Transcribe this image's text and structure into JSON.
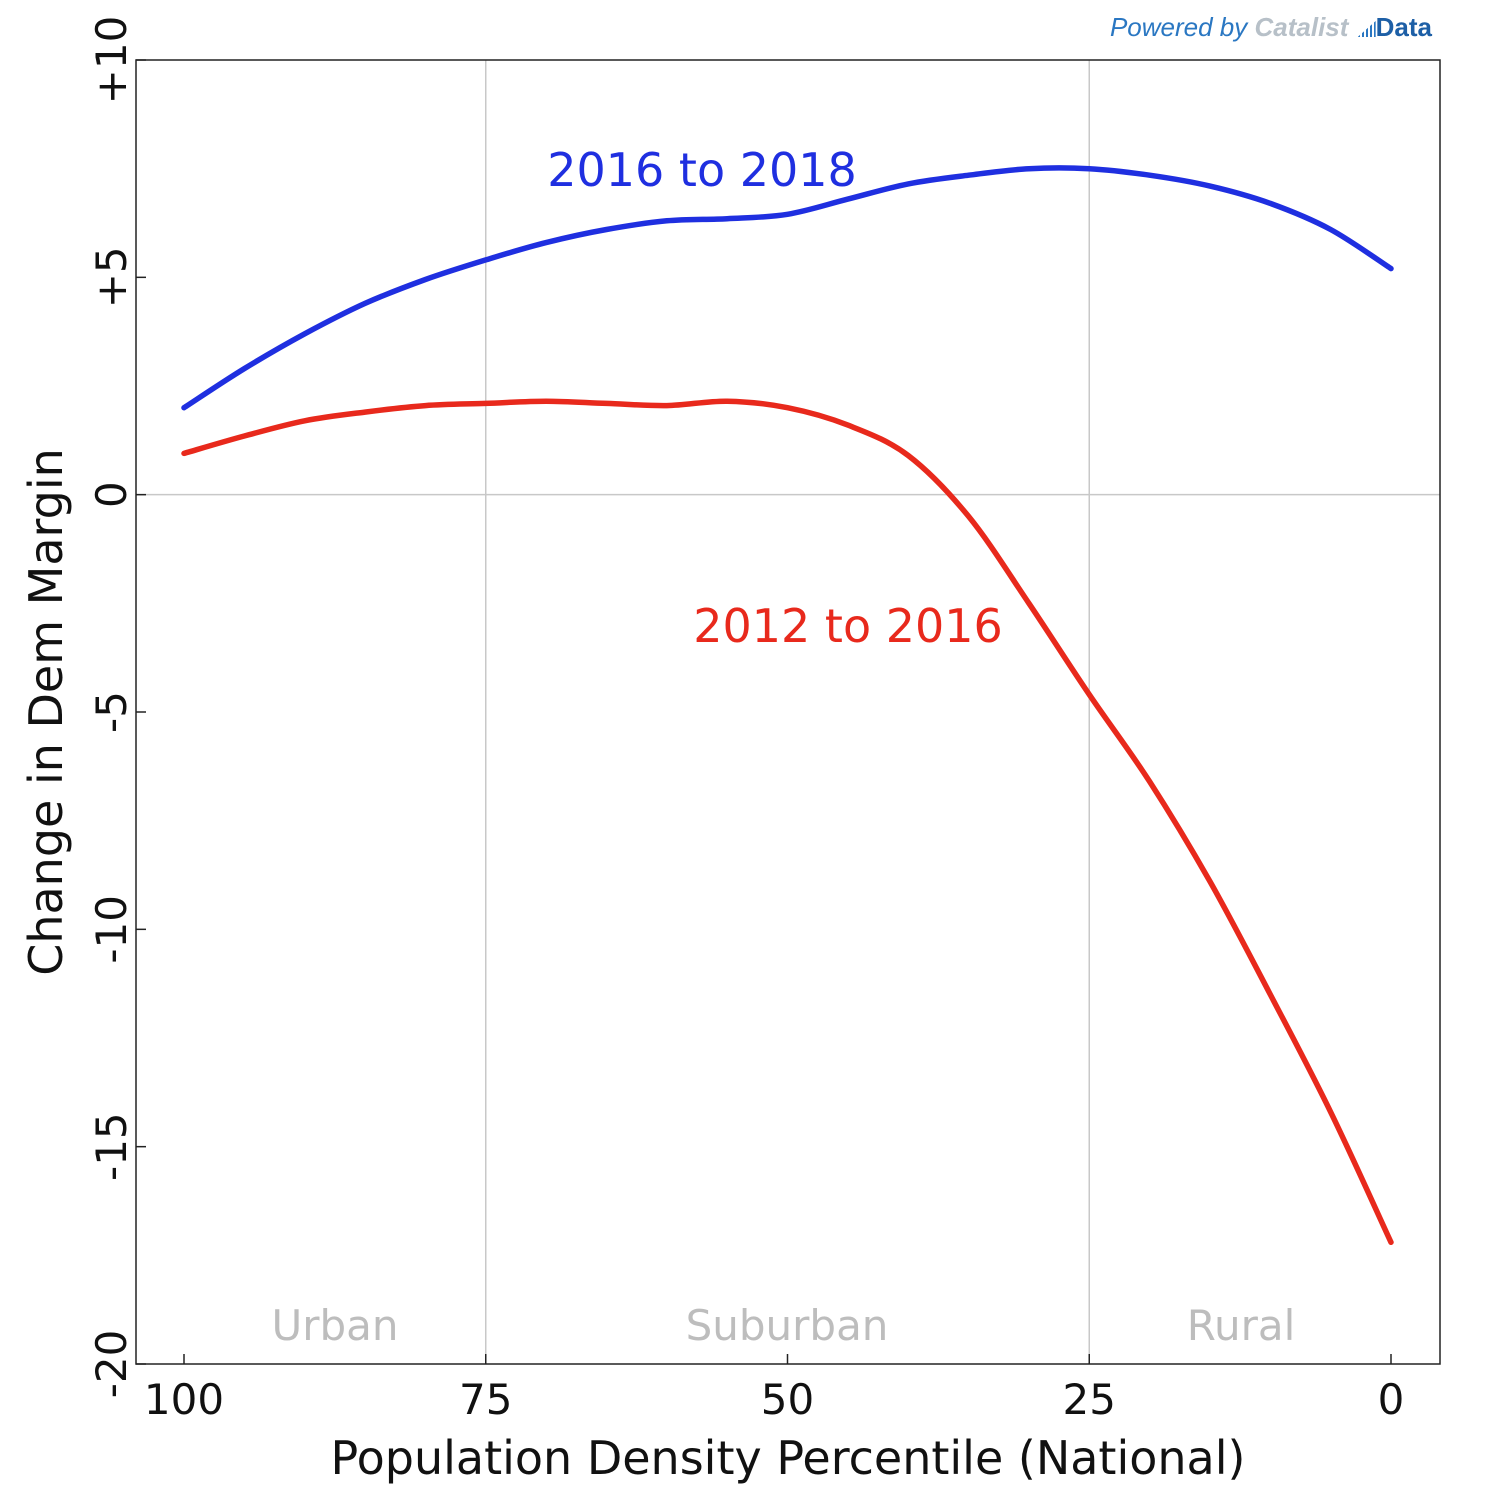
{
  "credit": {
    "powered": "Powered by",
    "brand": "Catalist",
    "data_word": "Data",
    "icon": "bar-chart-icon"
  },
  "chart_data": {
    "type": "line",
    "title": "",
    "xlabel": "Population Density Percentile (National)",
    "ylabel": "Change in Dem Margin",
    "xlim": [
      100,
      0
    ],
    "ylim": [
      -20,
      10
    ],
    "x_reversed": true,
    "xticks": [
      "100",
      "75",
      "50",
      "25",
      "0"
    ],
    "yticks": [
      "-20",
      "-15",
      "-10",
      "-5",
      "0",
      "+5",
      "+10"
    ],
    "grid": "vertical lines at 75, 25; horizontal line at 0",
    "region_labels": [
      "Urban",
      "Suburban",
      "Rural"
    ],
    "series": [
      {
        "name": "2016 to 2018",
        "color": "#1f2fe0",
        "x": [
          100,
          95,
          90,
          85,
          80,
          75,
          70,
          65,
          60,
          55,
          50,
          45,
          40,
          35,
          30,
          25,
          20,
          15,
          10,
          5,
          0
        ],
        "y": [
          2.0,
          2.9,
          3.7,
          4.4,
          4.95,
          5.4,
          5.8,
          6.1,
          6.3,
          6.35,
          6.45,
          6.8,
          7.15,
          7.35,
          7.5,
          7.5,
          7.35,
          7.1,
          6.7,
          6.1,
          5.2
        ]
      },
      {
        "name": "2012 to 2016",
        "color": "#e8291c",
        "x": [
          100,
          95,
          90,
          85,
          80,
          75,
          70,
          65,
          60,
          55,
          50,
          45,
          40,
          35,
          30,
          25,
          20,
          15,
          10,
          5,
          0
        ],
        "y": [
          0.95,
          1.35,
          1.7,
          1.9,
          2.05,
          2.1,
          2.15,
          2.1,
          2.05,
          2.15,
          2.0,
          1.6,
          0.9,
          -0.5,
          -2.5,
          -4.6,
          -6.6,
          -8.9,
          -11.5,
          -14.2,
          -17.2
        ]
      }
    ]
  }
}
